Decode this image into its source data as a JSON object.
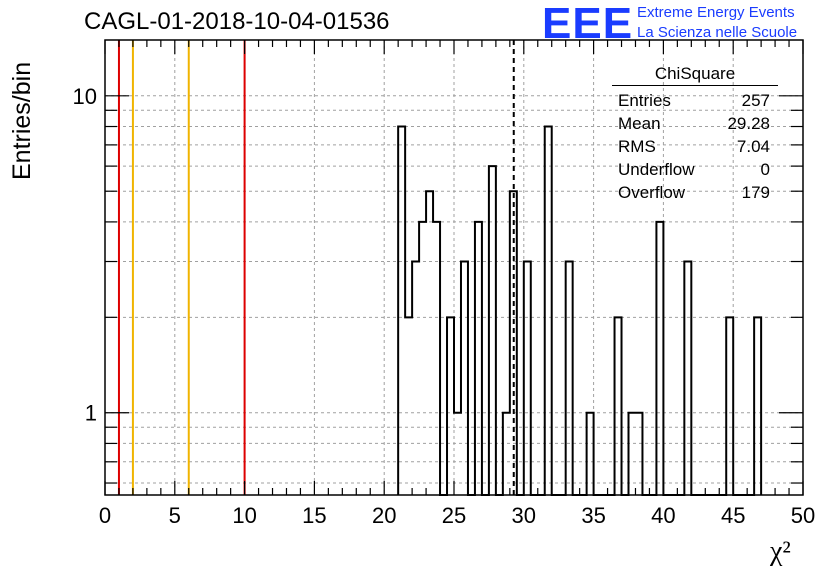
{
  "header": {
    "title": "CAGL-01-2018-10-04-01536",
    "logo_text": "EEE",
    "logo_line1": "Extreme Energy Events",
    "logo_line2": "La Scienza nelle Scuole"
  },
  "stats_box": {
    "title": "ChiSquare",
    "rows": [
      {
        "label": "Entries",
        "value": "257"
      },
      {
        "label": "Mean",
        "value": "29.28"
      },
      {
        "label": "RMS",
        "value": "7.04"
      },
      {
        "label": "Underflow",
        "value": "0"
      },
      {
        "label": "Overflow",
        "value": "179"
      }
    ]
  },
  "chart_data": {
    "type": "bar",
    "subtype": "histogram",
    "xlabel": "χ²",
    "ylabel": "Entries/bin",
    "xlim": [
      0,
      50
    ],
    "ylim": [
      0.55,
      15
    ],
    "y_scale": "log",
    "grid": true,
    "bin_width": 0.5,
    "x_ticks": [
      "0",
      "5",
      "10",
      "15",
      "20",
      "25",
      "30",
      "35",
      "40",
      "45",
      "50"
    ],
    "y_ticks": [
      "1",
      "10"
    ],
    "bins": [
      {
        "x": 21.0,
        "count": 8
      },
      {
        "x": 21.5,
        "count": 2
      },
      {
        "x": 22.0,
        "count": 3
      },
      {
        "x": 22.5,
        "count": 4
      },
      {
        "x": 23.0,
        "count": 5
      },
      {
        "x": 23.5,
        "count": 4
      },
      {
        "x": 24.5,
        "count": 2
      },
      {
        "x": 25.0,
        "count": 1
      },
      {
        "x": 25.5,
        "count": 3
      },
      {
        "x": 26.5,
        "count": 4
      },
      {
        "x": 27.5,
        "count": 6
      },
      {
        "x": 28.5,
        "count": 1
      },
      {
        "x": 29.0,
        "count": 5
      },
      {
        "x": 30.0,
        "count": 3
      },
      {
        "x": 31.5,
        "count": 8
      },
      {
        "x": 33.0,
        "count": 3
      },
      {
        "x": 34.5,
        "count": 1
      },
      {
        "x": 36.5,
        "count": 2
      },
      {
        "x": 37.5,
        "count": 1
      },
      {
        "x": 38.0,
        "count": 1
      },
      {
        "x": 39.5,
        "count": 4
      },
      {
        "x": 41.5,
        "count": 3
      },
      {
        "x": 44.5,
        "count": 2
      },
      {
        "x": 46.5,
        "count": 2
      }
    ],
    "reference_lines": [
      {
        "x": 1,
        "color": "#dd0000",
        "style": "solid"
      },
      {
        "x": 2,
        "color": "#f0b400",
        "style": "solid"
      },
      {
        "x": 6,
        "color": "#f0b400",
        "style": "solid"
      },
      {
        "x": 10,
        "color": "#dd0000",
        "style": "solid"
      },
      {
        "x": 29.28,
        "color": "#000000",
        "style": "dashed"
      }
    ]
  },
  "colors": {
    "logo": "#1a3cff",
    "grid": "#a0a0a0",
    "histogram": "#000000"
  }
}
